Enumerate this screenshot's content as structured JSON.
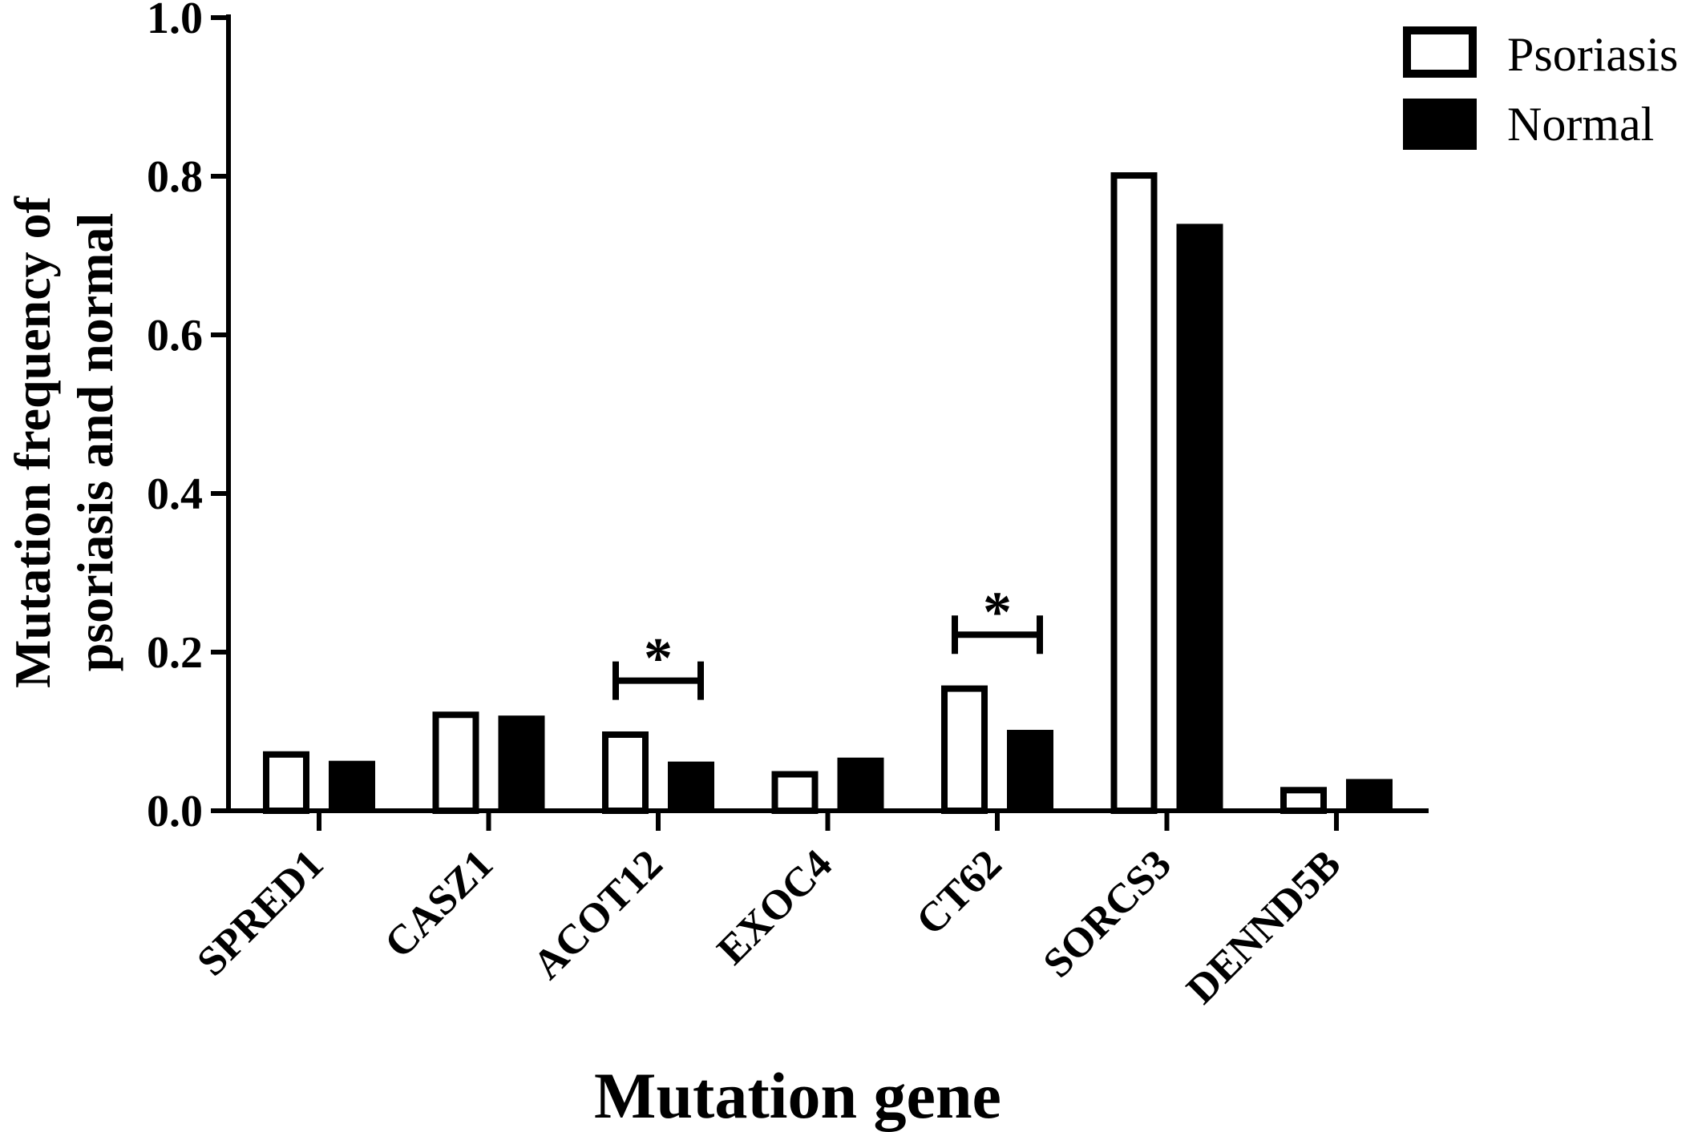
{
  "chart_data": {
    "type": "bar",
    "categories": [
      "SPRED1",
      "CASZ1",
      "ACOT12",
      "EXOC4",
      "CT62",
      "SORCS3",
      "DENND5B"
    ],
    "series": [
      {
        "name": "Psoriasis",
        "values": [
          0.075,
          0.125,
          0.1,
          0.05,
          0.158,
          0.805,
          0.03
        ],
        "color": "#ffffff"
      },
      {
        "name": "Normal",
        "values": [
          0.063,
          0.12,
          0.062,
          0.067,
          0.102,
          0.74,
          0.04
        ],
        "color": "#000000"
      }
    ],
    "xlabel": "Mutation gene",
    "ylabel_lines": [
      "Mutation frequency of",
      "psoriasis and normal"
    ],
    "ylim": [
      0,
      1.0
    ],
    "yticks": [
      "0.0",
      "0.2",
      "0.4",
      "0.6",
      "0.8",
      "1.0"
    ],
    "grid": false,
    "legend_position": "top-right",
    "annotations": [
      {
        "category": "ACOT12",
        "label": "*"
      },
      {
        "category": "CT62",
        "label": "*"
      }
    ]
  }
}
